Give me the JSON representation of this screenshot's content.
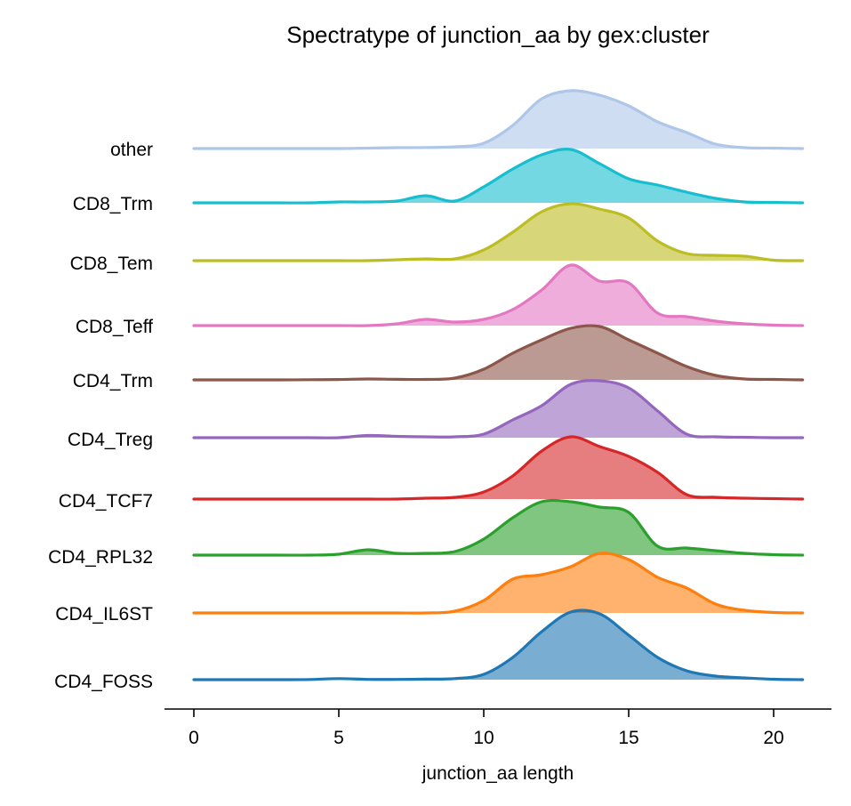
{
  "chart_data": {
    "type": "ridgeline",
    "title": "Spectratype of junction_aa by gex:cluster",
    "xlabel": "junction_aa length",
    "ylabel": "",
    "xlim": [
      -1,
      22
    ],
    "x_ticks": [
      0,
      5,
      10,
      15,
      20
    ],
    "x_tick_labels": [
      "0",
      "5",
      "10",
      "15",
      "20"
    ],
    "grid": false,
    "legend": "none",
    "x": [
      0,
      1,
      2,
      3,
      4,
      5,
      6,
      7,
      8,
      9,
      10,
      11,
      12,
      13,
      14,
      15,
      16,
      17,
      18,
      19,
      20,
      21
    ],
    "series": [
      {
        "name": "CD4_FOSS",
        "color": "#1f77b4",
        "values": [
          0,
          0,
          0,
          0,
          0.002,
          0.012,
          0.003,
          0.003,
          0.006,
          0.012,
          0.06,
          0.25,
          0.54,
          0.76,
          0.74,
          0.5,
          0.25,
          0.1,
          0.04,
          0.02,
          0.005,
          0
        ]
      },
      {
        "name": "CD4_IL6ST",
        "color": "#ff7f0e",
        "values": [
          0,
          0,
          0,
          0,
          0,
          0,
          0,
          0,
          0,
          0.02,
          0.14,
          0.38,
          0.43,
          0.52,
          0.67,
          0.6,
          0.4,
          0.28,
          0.1,
          0.03,
          0.005,
          0
        ]
      },
      {
        "name": "CD4_RPL32",
        "color": "#2ca02c",
        "values": [
          0,
          0,
          0,
          0,
          0,
          0.01,
          0.06,
          0.02,
          0.02,
          0.04,
          0.18,
          0.42,
          0.6,
          0.6,
          0.54,
          0.48,
          0.1,
          0.08,
          0.05,
          0.02,
          0.005,
          0
        ]
      },
      {
        "name": "CD4_TCF7",
        "color": "#d62728",
        "values": [
          0,
          0,
          0,
          0,
          0,
          0,
          0,
          0,
          0.01,
          0.02,
          0.08,
          0.26,
          0.54,
          0.7,
          0.59,
          0.48,
          0.3,
          0.05,
          0.02,
          0.01,
          0.005,
          0
        ]
      },
      {
        "name": "CD4_Treg",
        "color": "#9467bd",
        "values": [
          0,
          0,
          0,
          0,
          0,
          0,
          0.025,
          0.015,
          0.01,
          0.01,
          0.04,
          0.2,
          0.36,
          0.6,
          0.64,
          0.56,
          0.3,
          0.04,
          0.01,
          0.005,
          0,
          0
        ]
      },
      {
        "name": "CD4_Trm",
        "color": "#8c564b",
        "values": [
          0,
          0,
          0,
          0,
          0.002,
          0.004,
          0.01,
          0.006,
          0.005,
          0.02,
          0.12,
          0.3,
          0.45,
          0.58,
          0.6,
          0.45,
          0.3,
          0.15,
          0.05,
          0.01,
          0.005,
          0
        ]
      },
      {
        "name": "CD8_Teff",
        "color": "#e377c2",
        "values": [
          0,
          0,
          0,
          0,
          0,
          0,
          0,
          0.02,
          0.07,
          0.04,
          0.07,
          0.18,
          0.4,
          0.68,
          0.5,
          0.48,
          0.14,
          0.1,
          0.05,
          0.02,
          0.005,
          0
        ]
      },
      {
        "name": "CD8_Tem",
        "color": "#bcbd22",
        "values": [
          0,
          0,
          0,
          0,
          0,
          0,
          0,
          0.01,
          0.02,
          0.02,
          0.12,
          0.32,
          0.55,
          0.64,
          0.58,
          0.48,
          0.22,
          0.08,
          0.06,
          0.05,
          0.005,
          0
        ]
      },
      {
        "name": "CD8_Trm",
        "color": "#17becf",
        "values": [
          0,
          0,
          0,
          0,
          0,
          0.01,
          0.01,
          0.02,
          0.08,
          0.02,
          0.18,
          0.38,
          0.54,
          0.6,
          0.44,
          0.27,
          0.2,
          0.12,
          0.05,
          0.01,
          0.005,
          0
        ]
      },
      {
        "name": "other",
        "color": "#aec7e8",
        "values": [
          0,
          0,
          0,
          0,
          0,
          0,
          0.005,
          0.01,
          0.012,
          0.02,
          0.06,
          0.26,
          0.56,
          0.65,
          0.6,
          0.48,
          0.3,
          0.18,
          0.05,
          0.01,
          0.005,
          0
        ]
      }
    ]
  }
}
